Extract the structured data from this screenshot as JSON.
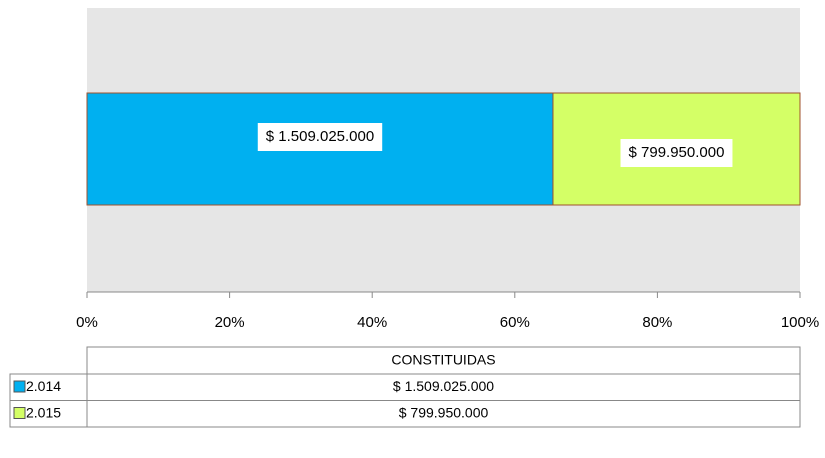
{
  "chart_data": {
    "type": "stacked_bar_100",
    "categories": [
      "CONSTITUIDAS"
    ],
    "series": [
      {
        "name": "2.014",
        "color": "#00b0f0",
        "values": [
          1509025000
        ],
        "value_labels": [
          "$ 1.509.025.000"
        ]
      },
      {
        "name": "2.015",
        "color": "#d4ff66",
        "values": [
          799950000
        ],
        "value_labels": [
          "$ 799.950.000"
        ]
      }
    ],
    "xlim": [
      0,
      100
    ],
    "xticks": [
      {
        "value": 0,
        "label": "0%"
      },
      {
        "value": 20,
        "label": "20%"
      },
      {
        "value": 40,
        "label": "40%"
      },
      {
        "value": 60,
        "label": "60%"
      },
      {
        "value": 80,
        "label": "80%"
      },
      {
        "value": 100,
        "label": "100%"
      }
    ]
  }
}
